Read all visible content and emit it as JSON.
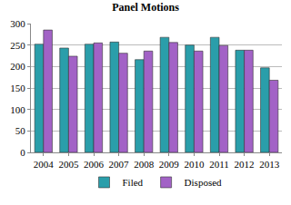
{
  "chart_data": {
    "type": "bar",
    "title": "Panel Motions",
    "categories": [
      "2004",
      "2005",
      "2006",
      "2007",
      "2008",
      "2009",
      "2010",
      "2011",
      "2012",
      "2013"
    ],
    "series": [
      {
        "name": "Filed",
        "color": "#2a9eaa",
        "values": [
          252,
          243,
          252,
          257,
          216,
          268,
          250,
          268,
          238,
          197
        ]
      },
      {
        "name": "Disposed",
        "color": "#a262c6",
        "values": [
          285,
          224,
          255,
          231,
          236,
          256,
          236,
          249,
          238,
          168
        ]
      }
    ],
    "ylim": [
      0,
      300
    ],
    "yticks": [
      0,
      50,
      100,
      150,
      200,
      250,
      300
    ],
    "grid": true,
    "legend": "bottom"
  }
}
